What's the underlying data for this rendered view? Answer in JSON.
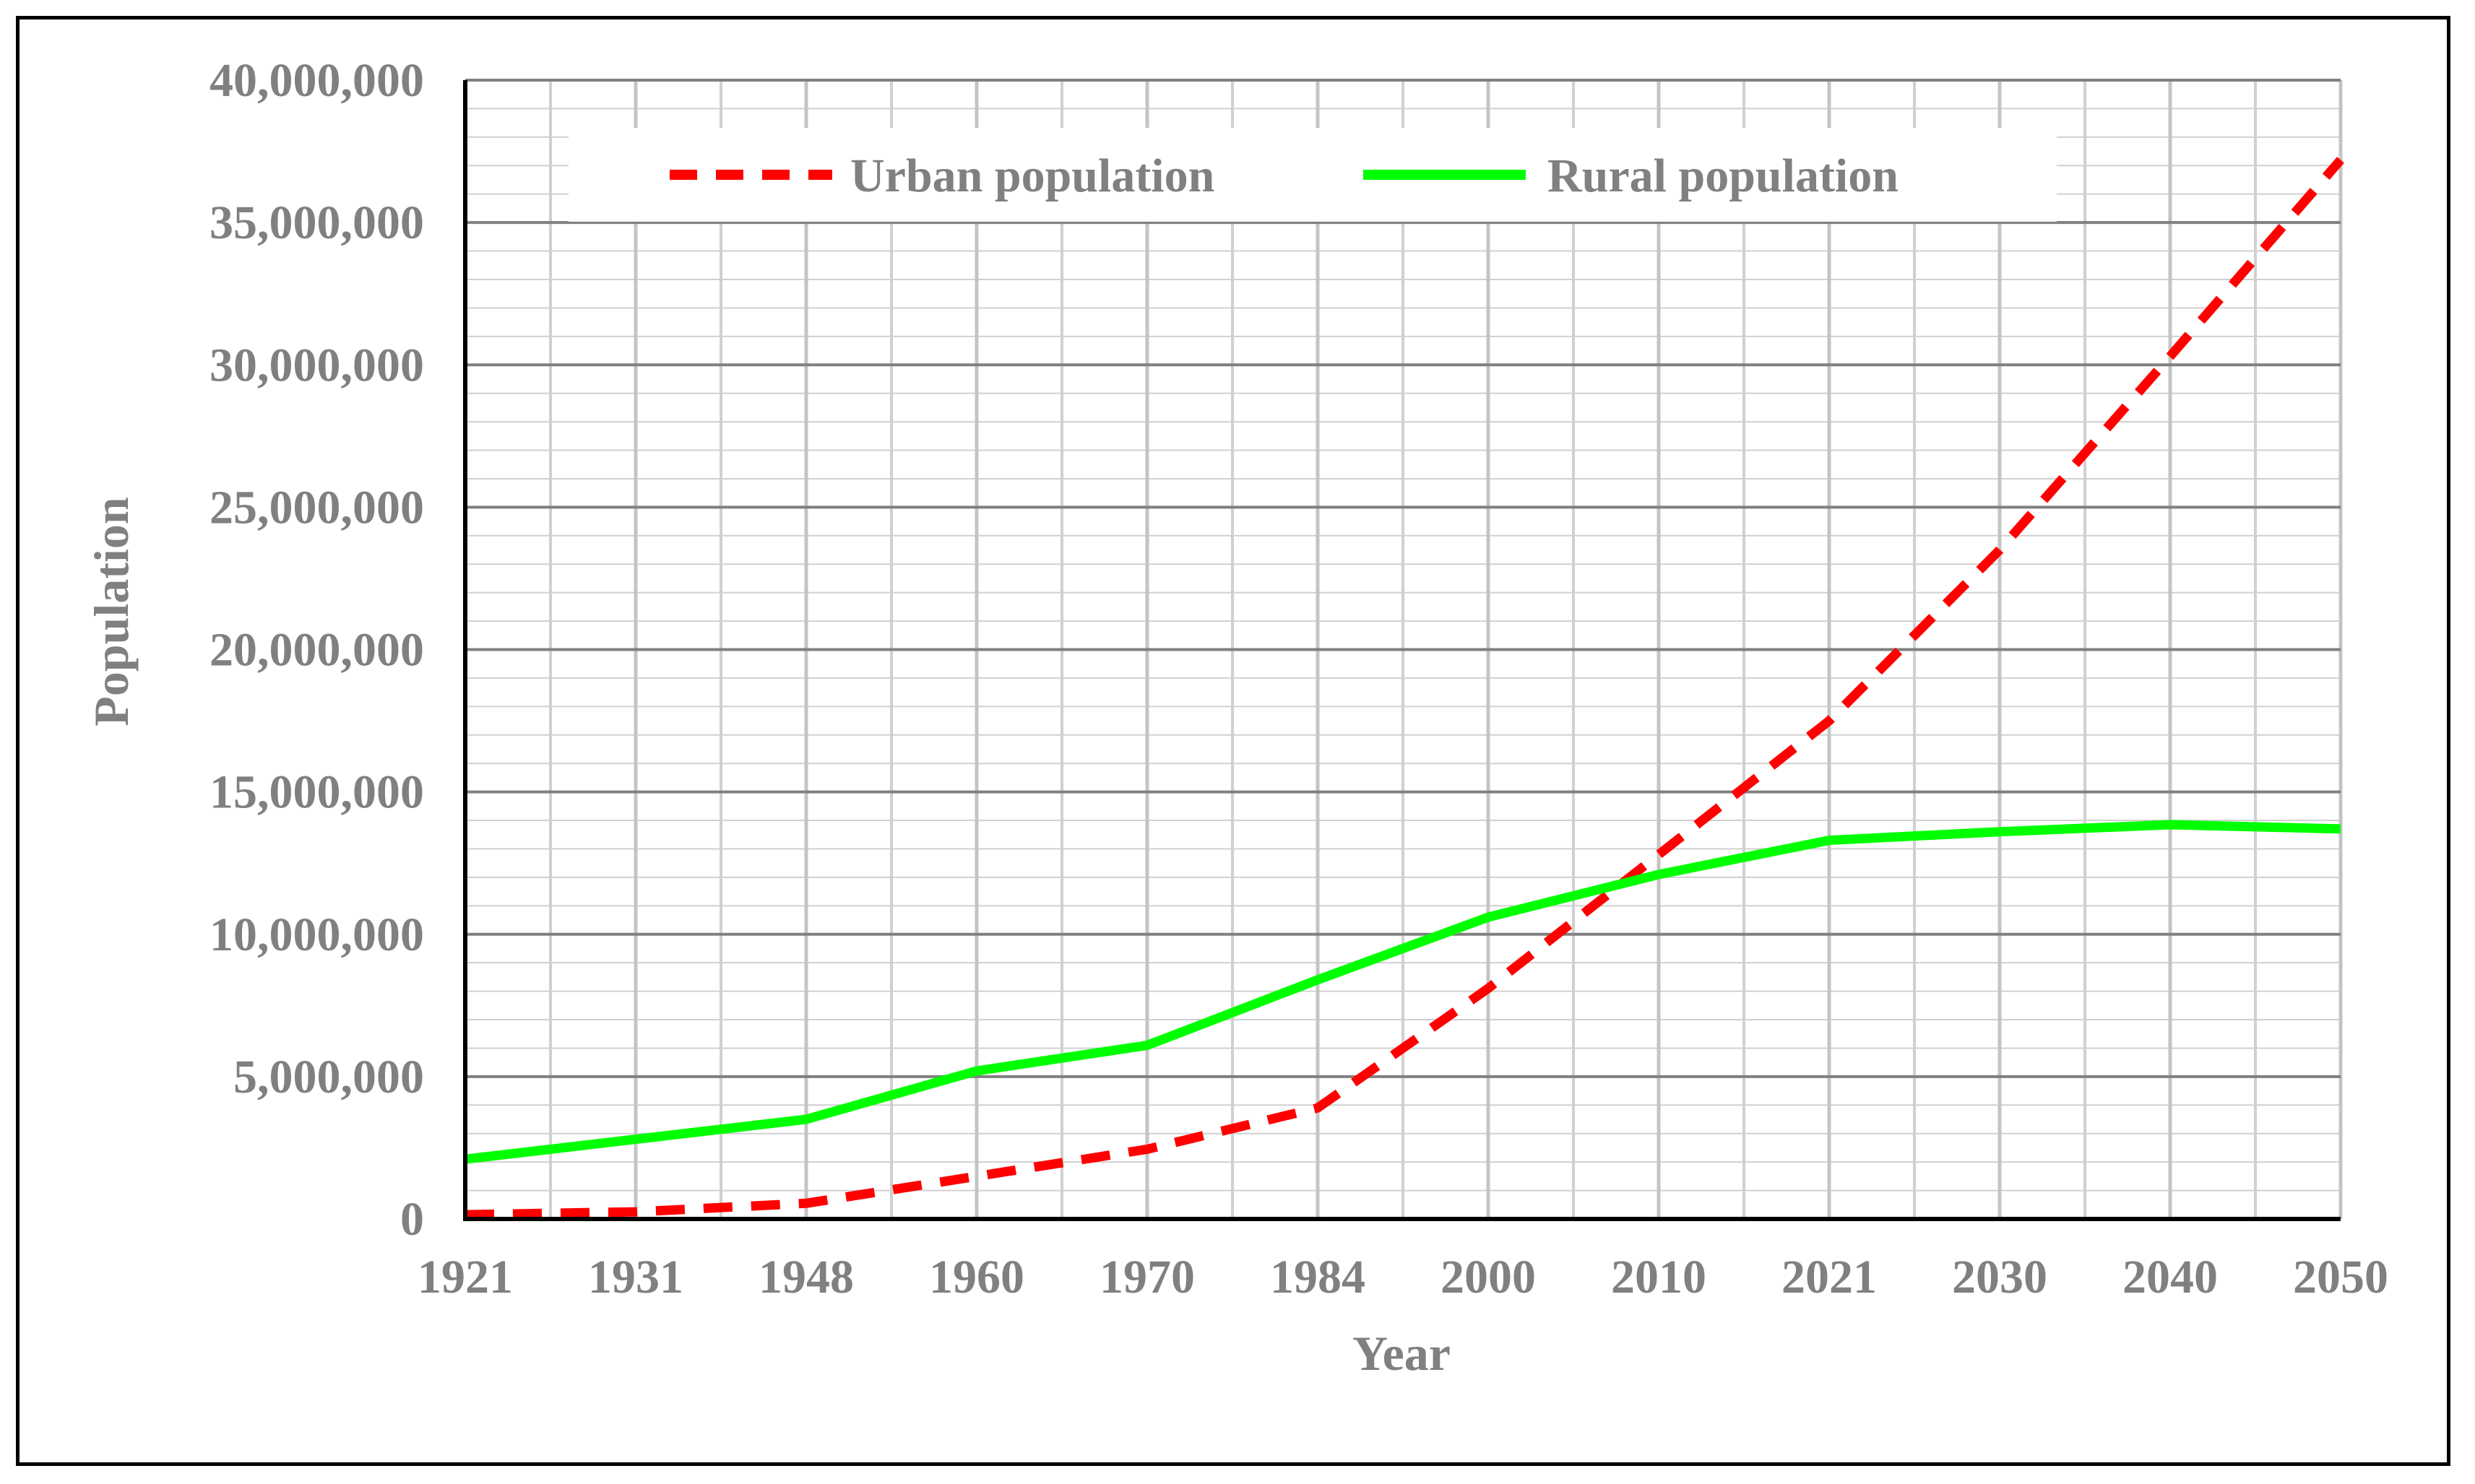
{
  "chart_data": {
    "type": "line",
    "title": "",
    "xlabel": "Year",
    "ylabel": "Population",
    "categories": [
      "1921",
      "1931",
      "1948",
      "1960",
      "1970",
      "1984",
      "2000",
      "2010",
      "2021",
      "2030",
      "2040",
      "2050"
    ],
    "y_tick_labels": [
      "0",
      "5,000,000",
      "10,000,000",
      "15,000,000",
      "20,000,000",
      "25,000,000",
      "30,000,000",
      "35,000,000",
      "40,000,000"
    ],
    "ylim": [
      0,
      40000000
    ],
    "grid": true,
    "legend_position": "top",
    "series": [
      {
        "name": "Urban population",
        "style": "dashed",
        "color": "#ff0000",
        "values": [
          150000,
          250000,
          550000,
          1500000,
          2450000,
          3900000,
          8100000,
          12800000,
          17500000,
          23500000,
          30300000,
          37200000
        ]
      },
      {
        "name": "Rural population",
        "style": "solid",
        "color": "#00ff00",
        "values": [
          2100000,
          2800000,
          3500000,
          5200000,
          6100000,
          8400000,
          10600000,
          12100000,
          13300000,
          13600000,
          13850000,
          13700000
        ]
      }
    ]
  }
}
